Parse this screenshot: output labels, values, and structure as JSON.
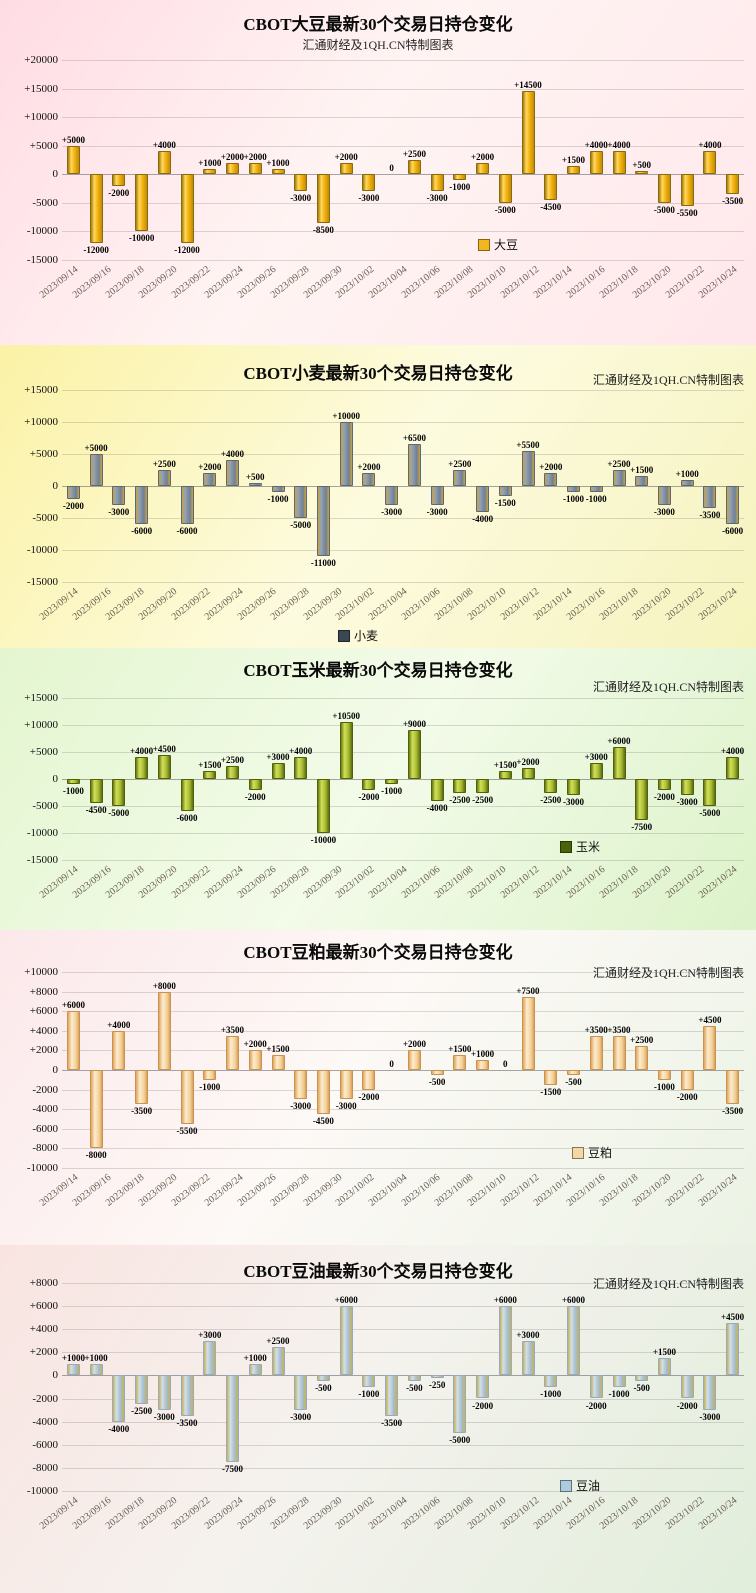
{
  "page": {
    "background": "#ffffff"
  },
  "chart_data": [
    {
      "id": "soybean",
      "type": "bar",
      "title": "CBOT大豆最新30个交易日持仓变化",
      "subtitle": "汇通财经及1QH.CN特制图表",
      "legend": "大豆",
      "legend_color": "#f0b81e",
      "ylim": [
        -15000,
        20000
      ],
      "ytick_step": 5000,
      "grid": true,
      "dates": [
        "2023/09/14",
        "2023/09/16",
        "2023/09/18",
        "2023/09/20",
        "2023/09/22",
        "2023/09/24",
        "2023/09/26",
        "2023/09/28",
        "2023/09/30",
        "2023/10/02",
        "2023/10/04",
        "2023/10/06",
        "2023/10/08",
        "2023/10/10",
        "2023/10/12",
        "2023/10/14",
        "2023/10/16",
        "2023/10/18",
        "2023/10/20",
        "2023/10/22",
        "2023/10/24"
      ],
      "values": [
        5000,
        -12000,
        -2000,
        -10000,
        4000,
        -12000,
        1000,
        2000,
        2000,
        1000,
        -3000,
        -8500,
        2000,
        -3000,
        0,
        2500,
        -3000,
        -1000,
        2000,
        -5000,
        14500,
        -4500,
        1500,
        4000,
        4000,
        500,
        -5000,
        -5500,
        4000,
        -3500
      ]
    },
    {
      "id": "wheat",
      "type": "bar",
      "title": "CBOT小麦最新30个交易日持仓变化",
      "subtitle": "汇通财经及1QH.CN特制图表",
      "legend": "小麦",
      "legend_color": "#3a4754",
      "ylim": [
        -15000,
        15000
      ],
      "ytick_step": 5000,
      "grid": true,
      "dates": [
        "2023/09/14",
        "2023/09/16",
        "2023/09/18",
        "2023/09/20",
        "2023/09/22",
        "2023/09/24",
        "2023/09/26",
        "2023/09/28",
        "2023/09/30",
        "2023/10/02",
        "2023/10/04",
        "2023/10/06",
        "2023/10/08",
        "2023/10/10",
        "2023/10/12",
        "2023/10/14",
        "2023/10/16",
        "2023/10/18",
        "2023/10/20",
        "2023/10/22",
        "2023/10/24"
      ],
      "values": [
        -2000,
        5000,
        -3000,
        -6000,
        2500,
        -6000,
        2000,
        4000,
        500,
        -1000,
        -5000,
        -11000,
        10000,
        2000,
        -3000,
        6500,
        -3000,
        2500,
        -4000,
        -1500,
        5500,
        2000,
        -1000,
        -1000,
        2500,
        1500,
        -3000,
        1000,
        -3500,
        -6000
      ]
    },
    {
      "id": "corn",
      "type": "bar",
      "title": "CBOT玉米最新30个交易日持仓变化",
      "subtitle": "汇通财经及1QH.CN特制图表",
      "legend": "玉米",
      "legend_color": "#47640d",
      "ylim": [
        -15000,
        15000
      ],
      "ytick_step": 5000,
      "grid": true,
      "dates": [
        "2023/09/14",
        "2023/09/16",
        "2023/09/18",
        "2023/09/20",
        "2023/09/22",
        "2023/09/24",
        "2023/09/26",
        "2023/09/28",
        "2023/09/30",
        "2023/10/02",
        "2023/10/04",
        "2023/10/06",
        "2023/10/08",
        "2023/10/10",
        "2023/10/12",
        "2023/10/14",
        "2023/10/16",
        "2023/10/18",
        "2023/10/20",
        "2023/10/22",
        "2023/10/24"
      ],
      "values": [
        -1000,
        -4500,
        -5000,
        4000,
        4500,
        -6000,
        1500,
        2500,
        -2000,
        3000,
        4000,
        -10000,
        10500,
        -2000,
        -1000,
        9000,
        -4000,
        -2500,
        -2500,
        1500,
        2000,
        -2500,
        -3000,
        3000,
        6000,
        -7500,
        -2000,
        -3000,
        -5000,
        4000
      ]
    },
    {
      "id": "meal",
      "type": "bar",
      "title": "CBOT豆粕最新30个交易日持仓变化",
      "subtitle": "汇通财经及1QH.CN特制图表",
      "legend": "豆粕",
      "legend_color": "#f5d7a4",
      "ylim": [
        -10000,
        10000
      ],
      "ytick_step": 2000,
      "grid": true,
      "dates": [
        "2023/09/14",
        "2023/09/16",
        "2023/09/18",
        "2023/09/20",
        "2023/09/22",
        "2023/09/24",
        "2023/09/26",
        "2023/09/28",
        "2023/09/30",
        "2023/10/02",
        "2023/10/04",
        "2023/10/06",
        "2023/10/08",
        "2023/10/10",
        "2023/10/12",
        "2023/10/14",
        "2023/10/16",
        "2023/10/18",
        "2023/10/20",
        "2023/10/22",
        "2023/10/24"
      ],
      "values": [
        6000,
        -8000,
        4000,
        -3500,
        8000,
        -5500,
        -1000,
        3500,
        2000,
        1500,
        -3000,
        -4500,
        -3000,
        -2000,
        0,
        2000,
        -500,
        1500,
        1000,
        0,
        7500,
        -1500,
        -500,
        3500,
        3500,
        2500,
        -1000,
        -2000,
        4500,
        -3500
      ]
    },
    {
      "id": "oil",
      "type": "bar",
      "title": "CBOT豆油最新30个交易日持仓变化",
      "subtitle": "汇通财经及1QH.CN特制图表",
      "legend": "豆油",
      "legend_color": "#aecbdd",
      "ylim": [
        -10000,
        8000
      ],
      "ytick_step": 2000,
      "grid": true,
      "dates": [
        "2023/09/14",
        "2023/09/16",
        "2023/09/18",
        "2023/09/20",
        "2023/09/22",
        "2023/09/24",
        "2023/09/26",
        "2023/09/28",
        "2023/09/30",
        "2023/10/02",
        "2023/10/04",
        "2023/10/06",
        "2023/10/08",
        "2023/10/10",
        "2023/10/12",
        "2023/10/14",
        "2023/10/16",
        "2023/10/18",
        "2023/10/20",
        "2023/10/22",
        "2023/10/24"
      ],
      "values": [
        1000,
        1000,
        -4000,
        -2500,
        -3000,
        -3500,
        3000,
        -7500,
        1000,
        2500,
        -3000,
        -500,
        6000,
        -1000,
        -3500,
        -500,
        -250,
        -5000,
        -2000,
        6000,
        3000,
        -1000,
        6000,
        -2000,
        -1000,
        -500,
        1500,
        -2000,
        -3000,
        4500
      ]
    }
  ]
}
